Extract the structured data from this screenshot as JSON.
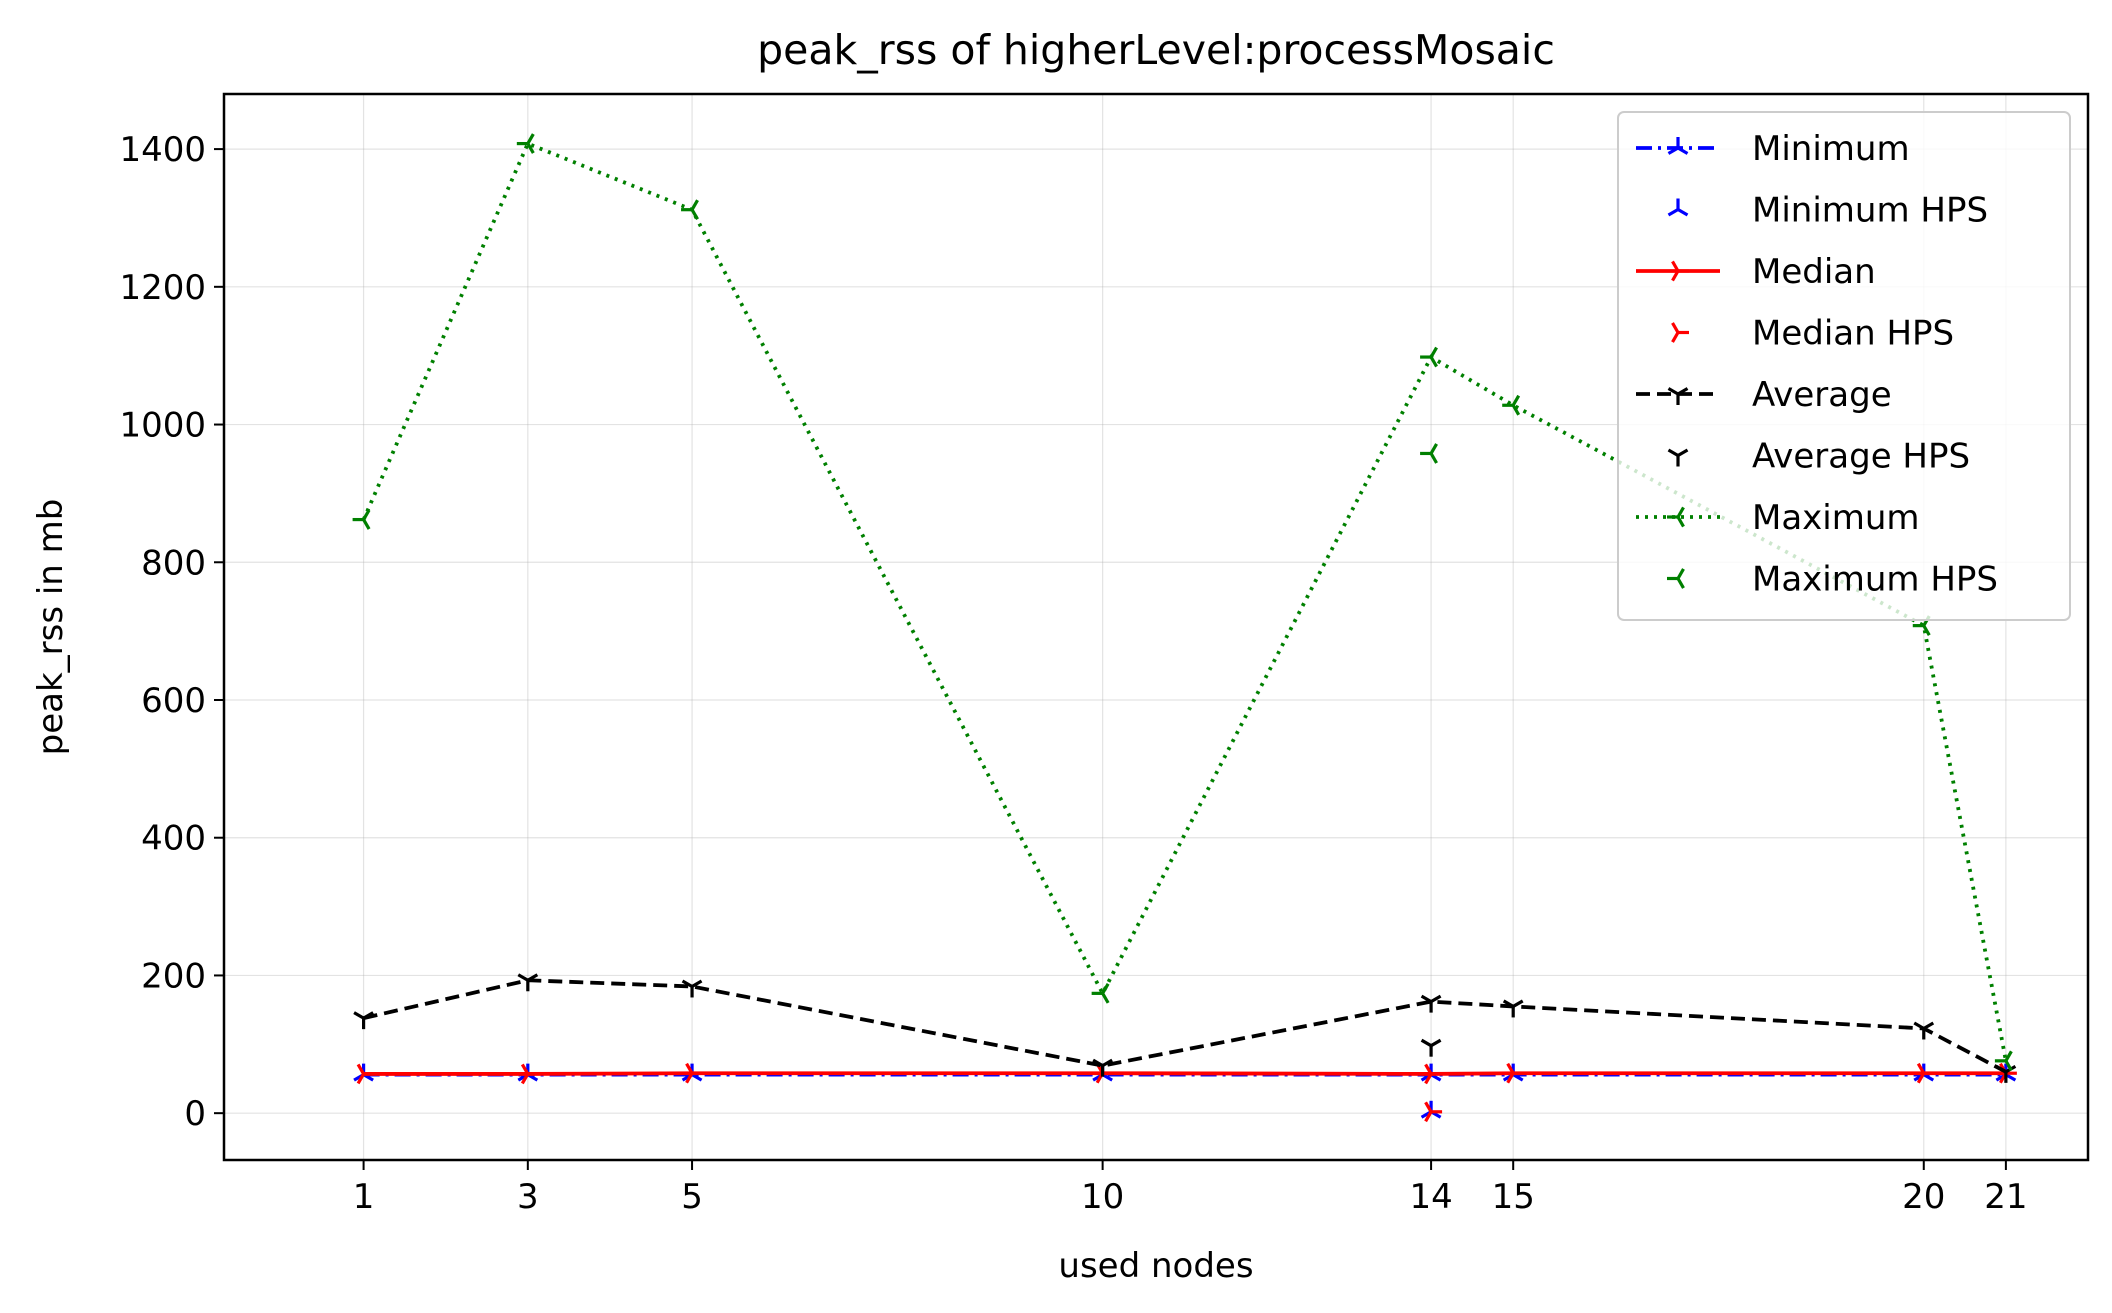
{
  "chart_data": {
    "type": "line",
    "title": "peak_rss of higherLevel:processMosaic",
    "xlabel": "used nodes",
    "ylabel": "peak_rss in mb",
    "x_ticks": [
      1,
      3,
      5,
      10,
      14,
      15,
      20,
      21
    ],
    "y_ticks": [
      0,
      200,
      400,
      600,
      800,
      1000,
      1200,
      1400
    ],
    "xlim": [
      -0.7,
      22.0
    ],
    "ylim": [
      -68,
      1480
    ],
    "grid": true,
    "legend_position": "top-right",
    "series": [
      {
        "name": "Minimum",
        "color": "#0000ff",
        "style": "dashdot",
        "marker": "tri_up",
        "x": [
          1,
          3,
          5,
          10,
          14,
          15,
          20,
          21
        ],
        "values": [
          56,
          56,
          56,
          56,
          56,
          56,
          56,
          56
        ]
      },
      {
        "name": "Minimum HPS",
        "color": "#0000ff",
        "style": "none",
        "marker": "tri_up",
        "x": [
          14
        ],
        "values": [
          2
        ]
      },
      {
        "name": "Median",
        "color": "#ff0000",
        "style": "solid",
        "marker": "tri_right",
        "x": [
          1,
          3,
          5,
          10,
          14,
          15,
          20,
          21
        ],
        "values": [
          57,
          57,
          58,
          58,
          57,
          58,
          58,
          58
        ]
      },
      {
        "name": "Median HPS",
        "color": "#ff0000",
        "style": "none",
        "marker": "tri_right",
        "x": [
          14
        ],
        "values": [
          2
        ]
      },
      {
        "name": "Average",
        "color": "#000000",
        "style": "dashed",
        "marker": "tri_down",
        "x": [
          1,
          3,
          5,
          10,
          14,
          15,
          20,
          21
        ],
        "values": [
          138,
          193,
          184,
          69,
          162,
          155,
          123,
          60
        ]
      },
      {
        "name": "Average HPS",
        "color": "#000000",
        "style": "none",
        "marker": "tri_down",
        "x": [
          14
        ],
        "values": [
          98
        ]
      },
      {
        "name": "Maximum",
        "color": "#008000",
        "style": "dotted",
        "marker": "tri_left",
        "x": [
          1,
          3,
          5,
          10,
          14,
          15,
          20,
          21
        ],
        "values": [
          862,
          1408,
          1312,
          174,
          1098,
          1028,
          708,
          76
        ]
      },
      {
        "name": "Maximum HPS",
        "color": "#008000",
        "style": "none",
        "marker": "tri_left",
        "x": [
          14
        ],
        "values": [
          958
        ]
      }
    ]
  }
}
